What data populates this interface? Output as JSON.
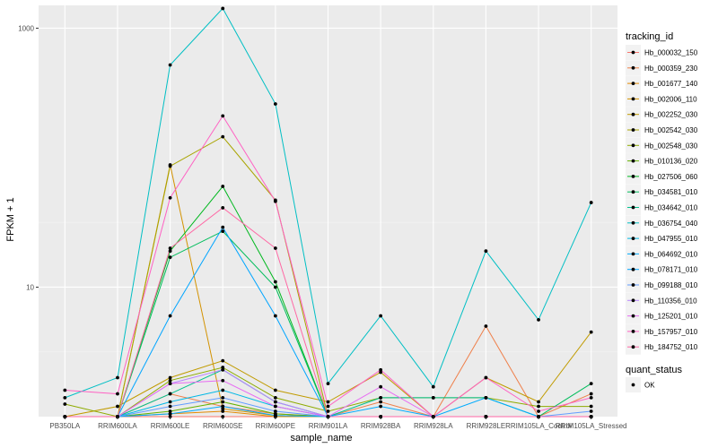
{
  "chart_data": {
    "type": "line",
    "xlabel": "sample_name",
    "ylabel": "FPKM + 1",
    "y_scale": "log10",
    "ylim": [
      1,
      1500
    ],
    "grid": true,
    "legend_position": "right",
    "y_ticks": [
      {
        "value": 10,
        "label": "10"
      },
      {
        "value": 1000,
        "label": "1000"
      }
    ],
    "categories": [
      "PB350LA",
      "RRIM600LA",
      "RRIM600LE",
      "RRIM600SE",
      "RRIM600PE",
      "RRIM901LA",
      "RRIM928BA",
      "RRIM928LA",
      "RRIM928LE",
      "RRIM105LA_Control",
      "RRIM105LA_Stressed"
    ],
    "legend_title": "tracking_id",
    "series": [
      {
        "name": "Hb_000032_150",
        "color": "#F8766D",
        "values": [
          1,
          1,
          1,
          1,
          1,
          1,
          1,
          1,
          1,
          1,
          1
        ]
      },
      {
        "name": "Hb_000359_230",
        "color": "#EF7F49",
        "values": [
          1,
          1,
          1.5,
          1.2,
          1.05,
          1,
          1.3,
          1,
          5.0,
          1,
          1.5
        ]
      },
      {
        "name": "Hb_001677_140",
        "color": "#E38900",
        "values": [
          1,
          1,
          1.05,
          1.1,
          1,
          1,
          1,
          1,
          1,
          1,
          1
        ]
      },
      {
        "name": "Hb_002006_110",
        "color": "#D39200",
        "values": [
          1,
          1,
          88,
          1.15,
          1.02,
          1,
          1,
          1,
          1,
          1,
          1
        ]
      },
      {
        "name": "Hb_002252_030",
        "color": "#C09B00",
        "values": [
          1,
          1.2,
          2.0,
          2.7,
          1.6,
          1.3,
          2.2,
          1.0,
          2.0,
          1.3,
          4.5
        ]
      },
      {
        "name": "Hb_002542_030",
        "color": "#A9A400",
        "values": [
          1,
          1,
          86,
          145,
          47,
          1,
          1,
          1,
          1,
          1,
          1
        ]
      },
      {
        "name": "Hb_002548_030",
        "color": "#8EAB00",
        "values": [
          1.25,
          1,
          1.9,
          2.4,
          1.4,
          1.1,
          1.4,
          1.4,
          1.4,
          1.2,
          1.2
        ]
      },
      {
        "name": "Hb_010136_020",
        "color": "#64B200",
        "values": [
          1,
          1,
          1.1,
          1.3,
          1.05,
          1,
          1,
          1,
          1,
          1,
          1
        ]
      },
      {
        "name": "Hb_027506_060",
        "color": "#00B81F",
        "values": [
          1,
          1,
          19,
          60,
          11,
          1,
          1,
          1,
          1,
          1,
          1
        ]
      },
      {
        "name": "Hb_034581_010",
        "color": "#00BD5C",
        "values": [
          1,
          1,
          17,
          27,
          10,
          1,
          1,
          1,
          1,
          1,
          1.8
        ]
      },
      {
        "name": "Hb_034642_010",
        "color": "#00C08D",
        "values": [
          1,
          1,
          1.5,
          2.3,
          1.3,
          1,
          1.4,
          1.4,
          1.4,
          1,
          1
        ]
      },
      {
        "name": "Hb_036754_040",
        "color": "#00BFC4",
        "values": [
          1.4,
          2.0,
          520,
          1420,
          260,
          1.8,
          6.0,
          1.7,
          19,
          5.6,
          45
        ]
      },
      {
        "name": "Hb_047955_010",
        "color": "#00B8E5",
        "values": [
          1,
          1,
          1.3,
          1.6,
          1.2,
          1,
          1,
          1,
          1,
          1,
          1
        ]
      },
      {
        "name": "Hb_064692_010",
        "color": "#00ABFD",
        "values": [
          1,
          1,
          1.05,
          1.2,
          1.02,
          1,
          1.2,
          1,
          1.4,
          1,
          1
        ]
      },
      {
        "name": "Hb_078171_010",
        "color": "#00A5FF",
        "values": [
          1,
          1,
          6.0,
          29,
          6.0,
          1,
          1,
          1,
          1,
          1,
          1
        ]
      },
      {
        "name": "Hb_099188_010",
        "color": "#619CFF",
        "values": [
          1,
          1,
          1.2,
          1.4,
          1.1,
          1,
          1,
          1,
          1,
          1,
          1.1
        ]
      },
      {
        "name": "Hb_110356_010",
        "color": "#B983FF",
        "values": [
          1,
          1,
          1.8,
          2.3,
          1.3,
          1,
          1,
          1,
          1,
          1,
          1
        ]
      },
      {
        "name": "Hb_125201_010",
        "color": "#E76BF3",
        "values": [
          1,
          1,
          1.8,
          1.9,
          1.2,
          1,
          1.7,
          1,
          1,
          1,
          1
        ]
      },
      {
        "name": "Hb_157957_010",
        "color": "#FF61C3",
        "values": [
          1.6,
          1.5,
          49,
          210,
          46,
          1.2,
          2.3,
          1,
          2.0,
          1.1,
          1.4
        ]
      },
      {
        "name": "Hb_184752_010",
        "color": "#FF67A4",
        "values": [
          1,
          1,
          20,
          41,
          20,
          1,
          1,
          1,
          1,
          1,
          1
        ]
      }
    ],
    "legend2_title": "quant_status",
    "legend2_items": [
      {
        "label": "OK"
      }
    ]
  }
}
